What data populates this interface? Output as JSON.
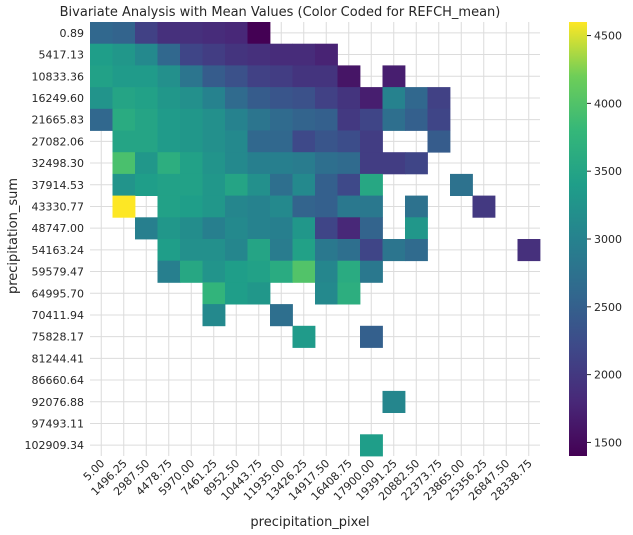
{
  "chart_data": {
    "type": "heatmap",
    "title": "Bivariate Analysis with Mean Values (Color Coded for REFCH_mean)",
    "xlabel": "precipitation_pixel",
    "ylabel": "precipitation_sum",
    "x_categories": [
      "5.00",
      "1496.25",
      "2987.50",
      "4478.75",
      "5970.00",
      "7461.25",
      "8952.50",
      "10443.75",
      "11935.00",
      "13426.25",
      "14917.50",
      "16408.75",
      "17900.00",
      "19391.25",
      "20882.50",
      "22373.75",
      "23865.00",
      "25356.25",
      "26847.50",
      "28338.75"
    ],
    "y_categories": [
      "0.89",
      "5417.13",
      "10833.36",
      "16249.60",
      "21665.83",
      "27082.06",
      "32498.30",
      "37914.53",
      "43330.77",
      "48747.00",
      "54163.24",
      "59579.47",
      "64995.70",
      "70411.94",
      "75828.17",
      "81244.41",
      "86660.64",
      "92076.88",
      "97493.11",
      "102909.34"
    ],
    "colormap": "viridis",
    "color_range": [
      1400,
      4600
    ],
    "colorbar_ticks": [
      "1500",
      "2000",
      "2500",
      "3000",
      "3500",
      "4000",
      "4500"
    ],
    "grid": true,
    "values": [
      [
        2600,
        2550,
        2100,
        1900,
        1900,
        1850,
        1800,
        1400,
        null,
        null,
        null,
        null,
        null,
        null,
        null,
        null,
        null,
        null,
        null,
        null
      ],
      [
        3400,
        3300,
        3100,
        2600,
        2150,
        2050,
        1950,
        1900,
        1850,
        1850,
        1750,
        null,
        null,
        null,
        null,
        null,
        null,
        null,
        null,
        null
      ],
      [
        3450,
        3350,
        3350,
        3200,
        2800,
        2450,
        2300,
        2100,
        2050,
        1950,
        1950,
        1600,
        null,
        1700,
        null,
        null,
        null,
        null,
        null,
        null
      ],
      [
        3250,
        3500,
        3450,
        3300,
        3200,
        3000,
        2650,
        2450,
        2350,
        2300,
        2100,
        1950,
        1700,
        3000,
        2600,
        2100,
        null,
        null,
        null,
        null
      ],
      [
        2600,
        3600,
        3500,
        3350,
        3300,
        3200,
        3000,
        2800,
        2650,
        2550,
        2500,
        2000,
        2150,
        2700,
        2500,
        2150,
        null,
        null,
        null,
        null
      ],
      [
        null,
        3500,
        3500,
        3350,
        3300,
        3200,
        3100,
        2600,
        2600,
        2200,
        2350,
        2250,
        2050,
        null,
        null,
        2450,
        null,
        null,
        null,
        null
      ],
      [
        null,
        3950,
        3300,
        3650,
        3450,
        3250,
        3100,
        2950,
        2950,
        2900,
        2700,
        2650,
        2050,
        2050,
        2150,
        null,
        null,
        null,
        null,
        null
      ],
      [
        null,
        3250,
        3400,
        3450,
        3450,
        3300,
        3500,
        3200,
        2700,
        3100,
        2500,
        2200,
        3550,
        null,
        null,
        null,
        2750,
        null,
        null,
        null
      ],
      [
        null,
        4600,
        null,
        3450,
        3400,
        3300,
        3050,
        3000,
        3100,
        2550,
        2500,
        2850,
        2850,
        null,
        2750,
        null,
        null,
        2000,
        null,
        null
      ],
      [
        null,
        null,
        2950,
        3300,
        3150,
        2950,
        3100,
        3000,
        2950,
        3300,
        2150,
        1800,
        2550,
        null,
        3300,
        null,
        null,
        null,
        null,
        null
      ],
      [
        null,
        null,
        null,
        3400,
        3200,
        3200,
        3050,
        3500,
        2900,
        3450,
        2850,
        2700,
        2150,
        2800,
        2650,
        null,
        null,
        null,
        null,
        1900
      ],
      [
        null,
        null,
        null,
        2950,
        3550,
        3250,
        3400,
        3450,
        3600,
        4000,
        3050,
        3600,
        2850,
        null,
        null,
        null,
        null,
        null,
        null,
        null
      ],
      [
        null,
        null,
        null,
        null,
        null,
        3750,
        3400,
        3300,
        null,
        null,
        3100,
        3650,
        null,
        null,
        null,
        null,
        null,
        null,
        null,
        null
      ],
      [
        null,
        null,
        null,
        null,
        null,
        3100,
        null,
        null,
        2700,
        null,
        null,
        null,
        null,
        null,
        null,
        null,
        null,
        null,
        null,
        null
      ],
      [
        null,
        null,
        null,
        null,
        null,
        null,
        null,
        null,
        null,
        3350,
        null,
        null,
        2500,
        null,
        null,
        null,
        null,
        null,
        null,
        null
      ],
      [
        null,
        null,
        null,
        null,
        null,
        null,
        null,
        null,
        null,
        null,
        null,
        null,
        null,
        null,
        null,
        null,
        null,
        null,
        null,
        null
      ],
      [
        null,
        null,
        null,
        null,
        null,
        null,
        null,
        null,
        null,
        null,
        null,
        null,
        null,
        null,
        null,
        null,
        null,
        null,
        null,
        null
      ],
      [
        null,
        null,
        null,
        null,
        null,
        null,
        null,
        null,
        null,
        null,
        null,
        null,
        null,
        3050,
        null,
        null,
        null,
        null,
        null,
        null
      ],
      [
        null,
        null,
        null,
        null,
        null,
        null,
        null,
        null,
        null,
        null,
        null,
        null,
        null,
        null,
        null,
        null,
        null,
        null,
        null,
        null
      ],
      [
        null,
        null,
        null,
        null,
        null,
        null,
        null,
        null,
        null,
        null,
        null,
        null,
        3400,
        null,
        null,
        null,
        null,
        null,
        null,
        null
      ]
    ]
  }
}
